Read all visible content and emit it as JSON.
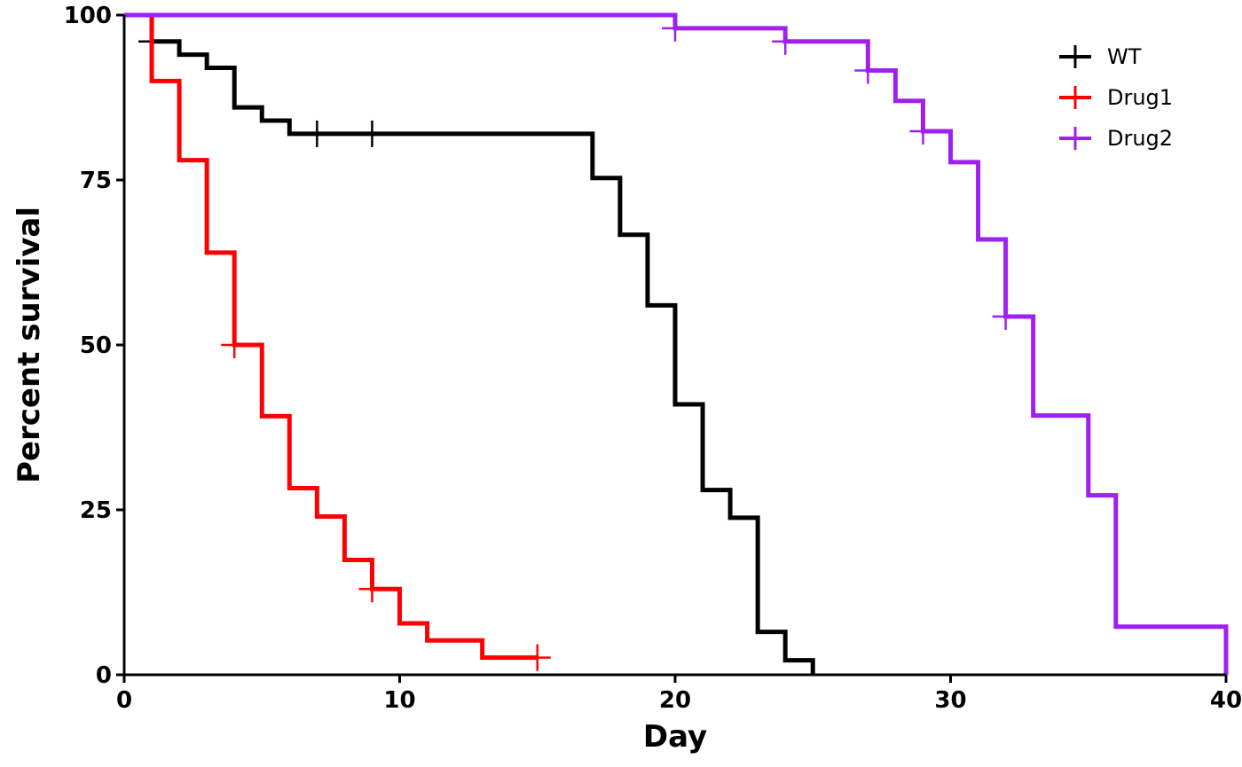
{
  "chart_data": {
    "type": "line",
    "step": "post",
    "title": "",
    "xlabel": "Day",
    "ylabel": "Percent survival",
    "xlim": [
      0,
      40
    ],
    "ylim": [
      0,
      100
    ],
    "x_ticks": [
      0,
      10,
      20,
      30,
      40
    ],
    "y_ticks": [
      0,
      25,
      50,
      75,
      100
    ],
    "x_tick_labels": [
      "0",
      "10",
      "20",
      "30",
      "40"
    ],
    "y_tick_labels": [
      "0",
      "25",
      "50",
      "75",
      "100"
    ],
    "grid": false,
    "legend_position": "top-right",
    "series": [
      {
        "name": "WT",
        "color": "#000000",
        "steps": [
          [
            0,
            100
          ],
          [
            1,
            96
          ],
          [
            2,
            94
          ],
          [
            3,
            92
          ],
          [
            4,
            86
          ],
          [
            5,
            84
          ],
          [
            6,
            82
          ],
          [
            17,
            75.3
          ],
          [
            18,
            66.7
          ],
          [
            19,
            56
          ],
          [
            20,
            41
          ],
          [
            21,
            28
          ],
          [
            22,
            23.8
          ],
          [
            23,
            6.5
          ],
          [
            24,
            2.2
          ],
          [
            25,
            0
          ]
        ],
        "censored": [
          [
            1,
            96
          ],
          [
            7,
            82
          ],
          [
            9,
            82
          ]
        ]
      },
      {
        "name": "Drug1",
        "color": "#ff0000",
        "steps": [
          [
            0,
            100
          ],
          [
            1,
            90
          ],
          [
            2,
            78
          ],
          [
            3,
            64
          ],
          [
            4,
            50
          ],
          [
            5,
            39.2
          ],
          [
            6,
            28.3
          ],
          [
            7,
            24
          ],
          [
            8,
            17.4
          ],
          [
            9,
            13
          ],
          [
            10,
            7.8
          ],
          [
            11,
            5.2
          ],
          [
            13,
            2.6
          ],
          [
            15,
            2.6
          ]
        ],
        "censored": [
          [
            4,
            50
          ],
          [
            9,
            13
          ],
          [
            15,
            2.6
          ]
        ]
      },
      {
        "name": "Drug2",
        "color": "#a020f0",
        "steps": [
          [
            0,
            100
          ],
          [
            20,
            98
          ],
          [
            24,
            96
          ],
          [
            27,
            91.6
          ],
          [
            28,
            87
          ],
          [
            29,
            82.4
          ],
          [
            30,
            77.7
          ],
          [
            31,
            66
          ],
          [
            32,
            54.3
          ],
          [
            33,
            39.3
          ],
          [
            35,
            27.2
          ],
          [
            36,
            7.3
          ],
          [
            40,
            0
          ]
        ],
        "censored": [
          [
            20,
            98
          ],
          [
            24,
            96
          ],
          [
            27,
            91.6
          ],
          [
            29,
            82.4
          ],
          [
            32,
            54.3
          ]
        ]
      }
    ]
  }
}
